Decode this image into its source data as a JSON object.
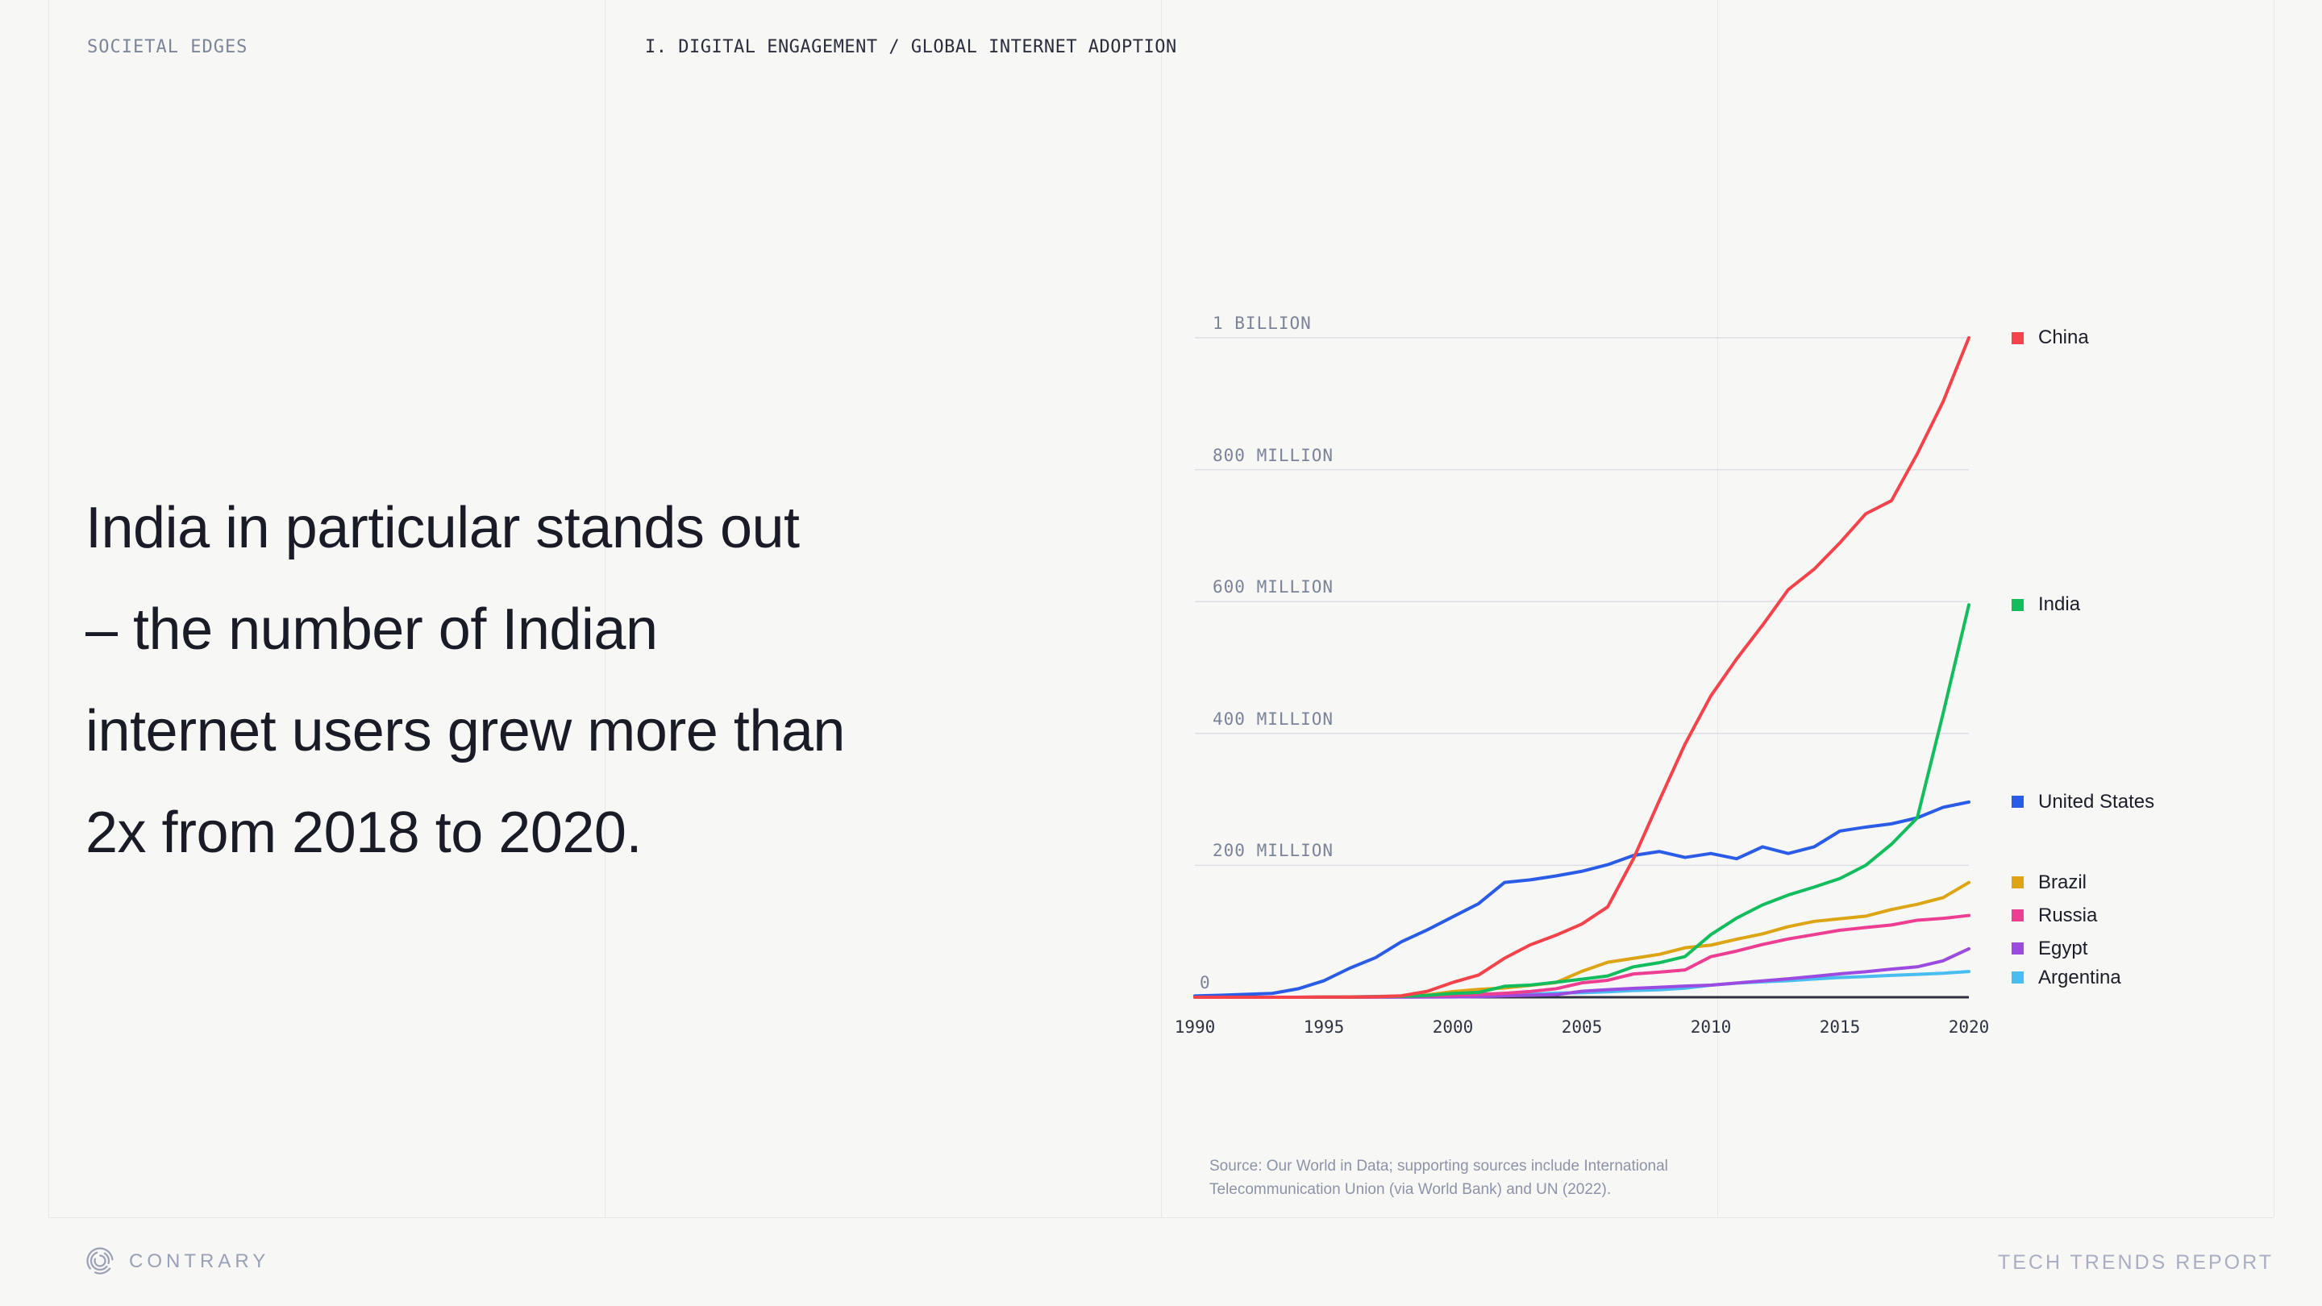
{
  "header": {
    "eyebrow": "SOCIETAL EDGES",
    "section": "I. DIGITAL ENGAGEMENT / GLOBAL INTERNET ADOPTION"
  },
  "headline": {
    "lines": [
      "India in particular stands out",
      "– the number of Indian",
      "internet users grew more than",
      "2x from 2018 to 2020."
    ]
  },
  "chart_data": {
    "type": "line",
    "title": "",
    "unit": "millions of internet users",
    "xlim": [
      1990,
      2020
    ],
    "ylim": [
      0,
      1000
    ],
    "grid": "horizontal",
    "legend_position": "right",
    "x_ticks": [
      1990,
      1995,
      2000,
      2005,
      2010,
      2015,
      2020
    ],
    "y_ticks": [
      {
        "v": 0,
        "label": "0"
      },
      {
        "v": 200,
        "label": "200 MILLION"
      },
      {
        "v": 400,
        "label": "400 MILLION"
      },
      {
        "v": 600,
        "label": "600 MILLION"
      },
      {
        "v": 800,
        "label": "800 MILLION"
      },
      {
        "v": 1000,
        "label": "1 BILLION"
      }
    ],
    "years": [
      1990,
      1991,
      1992,
      1993,
      1994,
      1995,
      1996,
      1997,
      1998,
      1999,
      2000,
      2001,
      2002,
      2003,
      2004,
      2005,
      2006,
      2007,
      2008,
      2009,
      2010,
      2011,
      2012,
      2013,
      2014,
      2015,
      2016,
      2017,
      2018,
      2019,
      2020
    ],
    "series": [
      {
        "name": "China",
        "color": "#f4434b",
        "values": [
          0,
          0,
          0,
          0,
          0,
          0.1,
          0.2,
          0.4,
          2.1,
          8.9,
          22.5,
          33.7,
          59.1,
          79.5,
          94.1,
          111,
          137,
          210,
          298,
          384,
          457,
          513,
          564,
          618,
          649,
          689,
          733,
          753,
          824,
          903,
          1000
        ]
      },
      {
        "name": "India",
        "color": "#13bd5e",
        "values": [
          0,
          0,
          0,
          0,
          0,
          0.1,
          0.2,
          0.7,
          1.4,
          2.8,
          5.6,
          7.3,
          16.6,
          18.5,
          22.8,
          27.3,
          32.2,
          46.1,
          52.4,
          61.7,
          95,
          120,
          140,
          155,
          167,
          180,
          200,
          232,
          272,
          430,
          595
        ]
      },
      {
        "name": "United States",
        "color": "#2a5ce8",
        "values": [
          2,
          3,
          4.4,
          5.8,
          12.8,
          25,
          44,
          60,
          84,
          102,
          122,
          142,
          174,
          178,
          184,
          191,
          201,
          215,
          221,
          212,
          218,
          210,
          228,
          218,
          228,
          252,
          258,
          263,
          272,
          288,
          296
        ]
      },
      {
        "name": "Brazil",
        "color": "#dda414",
        "values": [
          0,
          0,
          0,
          0,
          0,
          0.1,
          0.3,
          0.8,
          1.8,
          3.5,
          8.6,
          11.9,
          14.1,
          18,
          22.3,
          39.3,
          53,
          59,
          65,
          75,
          79,
          88,
          96,
          107,
          115,
          119,
          123,
          133,
          141,
          151,
          174
        ]
      },
      {
        "name": "Russia",
        "color": "#ee3e92",
        "values": [
          0,
          0,
          0,
          0,
          0,
          0.4,
          0.6,
          1.2,
          1.8,
          1.9,
          2.9,
          4.3,
          6,
          8.7,
          12.9,
          21.8,
          25.7,
          35.3,
          38.1,
          41.4,
          61.5,
          70,
          80,
          88.4,
          95,
          101.6,
          105.7,
          109.6,
          116.8,
          119.6,
          124
        ]
      },
      {
        "name": "Egypt",
        "color": "#9b4be0",
        "values": [
          0,
          0,
          0,
          0,
          0,
          0,
          0,
          0.1,
          0.2,
          0.3,
          0.5,
          0.9,
          2.1,
          3,
          3.9,
          9,
          11.4,
          13.5,
          15.1,
          16.9,
          18.3,
          21.6,
          24.8,
          28,
          31.6,
          35.5,
          38.7,
          42.6,
          46.1,
          55.3,
          73.4
        ]
      },
      {
        "name": "Argentina",
        "color": "#47bdf0",
        "values": [
          0,
          0,
          0,
          0,
          0,
          0.1,
          0.2,
          0.4,
          0.9,
          1.4,
          2.6,
          3.6,
          4,
          4.4,
          6.2,
          6.9,
          8.2,
          10.2,
          11.3,
          13.7,
          18.3,
          21.4,
          23.4,
          25.1,
          27.6,
          29.9,
          31.4,
          33.2,
          34.7,
          36.4,
          39
        ]
      }
    ]
  },
  "source": {
    "lines": [
      "Source: Our World in Data; supporting sources include International",
      "Telecommunication Union (via World Bank) and UN (2022)."
    ]
  },
  "footer": {
    "brand": "CONTRARY",
    "report": "TECH TRENDS REPORT"
  }
}
